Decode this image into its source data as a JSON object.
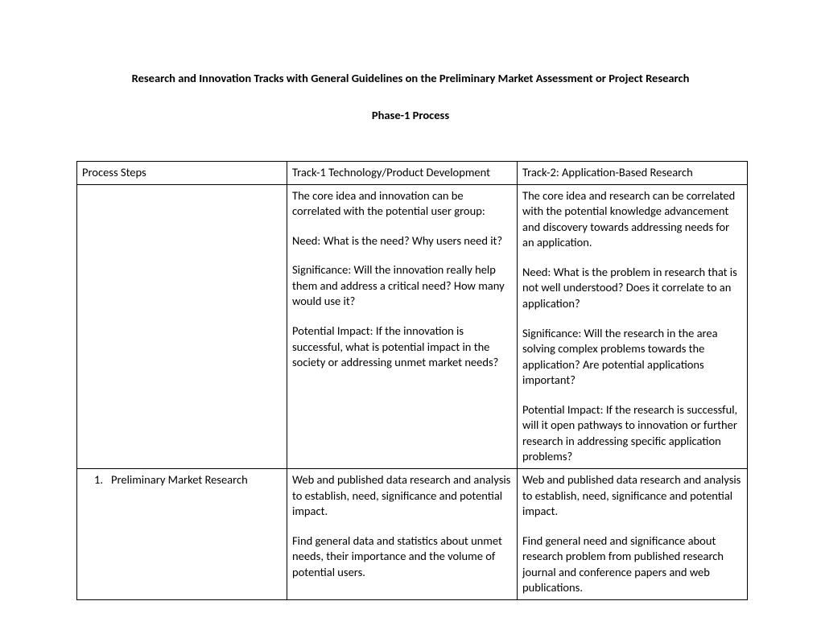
{
  "title": "Research and Innovation Tracks with General Guidelines on the Preliminary Market Assessment or Project Research",
  "subtitle": "Phase-1 Process",
  "table": {
    "headers": {
      "col1": "Process Steps",
      "col2": "Track-1 Technology/Product Development",
      "col3": "Track-2: Application-Based Research"
    },
    "rows": [
      {
        "step_num": "",
        "step_label": "",
        "track1": [
          "The core idea and innovation can be correlated with the potential user group:",
          "Need: What is the need? Why users need it?",
          "Significance: Will the innovation really help them and address a critical need? How many would use it?",
          "Potential Impact: If the innovation is successful, what is potential impact in the society or addressing unmet market needs?"
        ],
        "track2": [
          "The core idea and research can be correlated with the potential knowledge advancement and discovery towards addressing needs for an application.",
          "Need: What is the problem in research that is not well understood? Does it correlate to an application?",
          "Significance: Will the research in the area solving complex problems towards the application? Are potential applications important?",
          "Potential Impact: If the research is successful, will it open pathways to innovation or further research in addressing specific application problems?"
        ]
      },
      {
        "step_num": "1.",
        "step_label": "Preliminary Market Research",
        "track1": [
          "Web and published data research and analysis to establish, need, significance and potential impact.",
          "Find general data and statistics about unmet needs, their importance and the volume of potential users."
        ],
        "track2": [
          "Web and published data research and analysis to establish, need, significance and potential impact.",
          "Find general need and significance about research problem from published research journal and conference papers and web publications."
        ]
      }
    ]
  }
}
